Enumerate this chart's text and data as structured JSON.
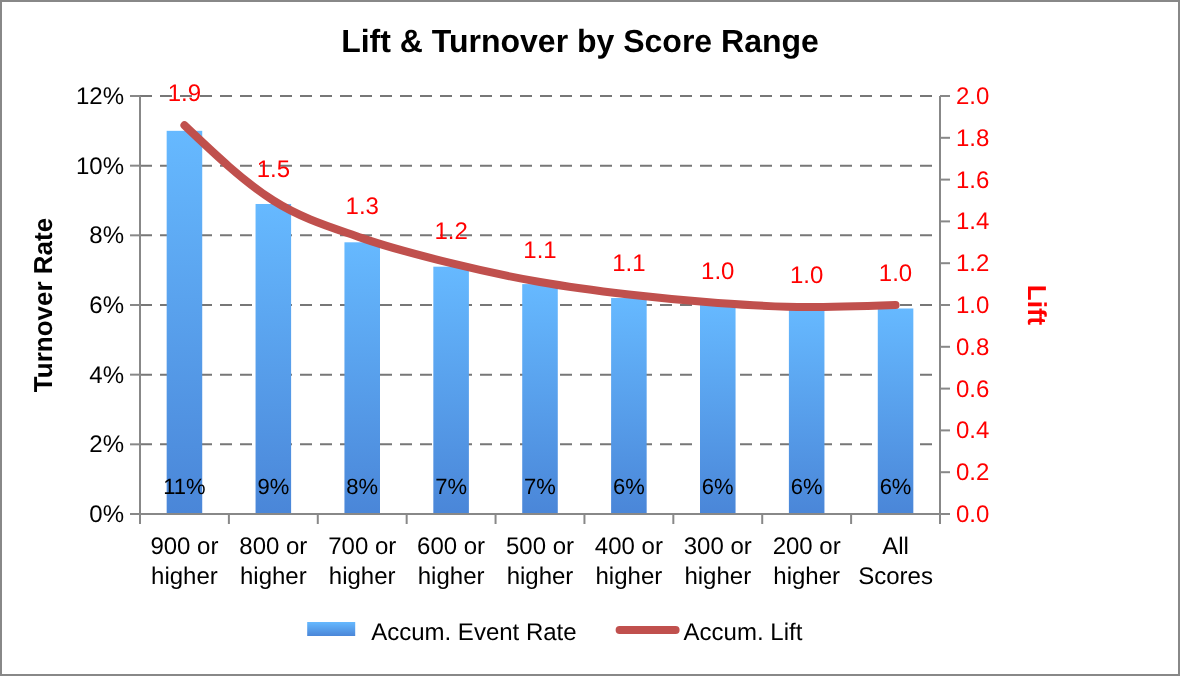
{
  "chart_data": {
    "type": "bar",
    "title": "Lift & Turnover by Score Range",
    "ylabel": "Turnover Rate",
    "y2label": "Lift",
    "categories": [
      "900 or higher",
      "800 or higher",
      "700 or higher",
      "600 or higher",
      "500 or higher",
      "400 or higher",
      "300 or higher",
      "200 or higher",
      "All Scores"
    ],
    "series": [
      {
        "name": "Accum. Event Rate",
        "color": "#4a86d8",
        "values": [
          11.0,
          8.9,
          7.8,
          7.1,
          6.6,
          6.2,
          6.0,
          5.9,
          5.9
        ],
        "value_labels": [
          "11%",
          "9%",
          "8%",
          "7%",
          "7%",
          "6%",
          "6%",
          "6%",
          "6%"
        ]
      },
      {
        "name": "Accum. Lift",
        "type": "line",
        "axis": "y2",
        "color": "#c0504d",
        "values": [
          1.86,
          1.5,
          1.32,
          1.2,
          1.11,
          1.05,
          1.01,
          0.99,
          1.0
        ],
        "value_labels": [
          "1.9",
          "1.5",
          "1.3",
          "1.2",
          "1.1",
          "1.1",
          "1.0",
          "1.0",
          "1.0"
        ]
      }
    ],
    "ylim": [
      0,
      12
    ],
    "yticks": [
      {
        "value": 0,
        "label": "0%"
      },
      {
        "value": 2,
        "label": "2%"
      },
      {
        "value": 4,
        "label": "4%"
      },
      {
        "value": 6,
        "label": "6%"
      },
      {
        "value": 8,
        "label": "8%"
      },
      {
        "value": 10,
        "label": "10%"
      },
      {
        "value": 12,
        "label": "12%"
      }
    ],
    "y2lim": [
      0,
      2
    ],
    "y2ticks": [
      {
        "value": 0,
        "label": "0.0"
      },
      {
        "value": 0.2,
        "label": "0.2"
      },
      {
        "value": 0.4,
        "label": "0.4"
      },
      {
        "value": 0.6,
        "label": "0.6"
      },
      {
        "value": 0.8,
        "label": "0.8"
      },
      {
        "value": 1,
        "label": "1.0"
      },
      {
        "value": 1.2,
        "label": "1.2"
      },
      {
        "value": 1.4,
        "label": "1.4"
      },
      {
        "value": 1.6,
        "label": "1.6"
      },
      {
        "value": 1.8,
        "label": "1.8"
      },
      {
        "value": 2,
        "label": "2.0"
      }
    ],
    "grid": "y",
    "legend": "bottom",
    "line_style": "solid",
    "marker": "none"
  }
}
